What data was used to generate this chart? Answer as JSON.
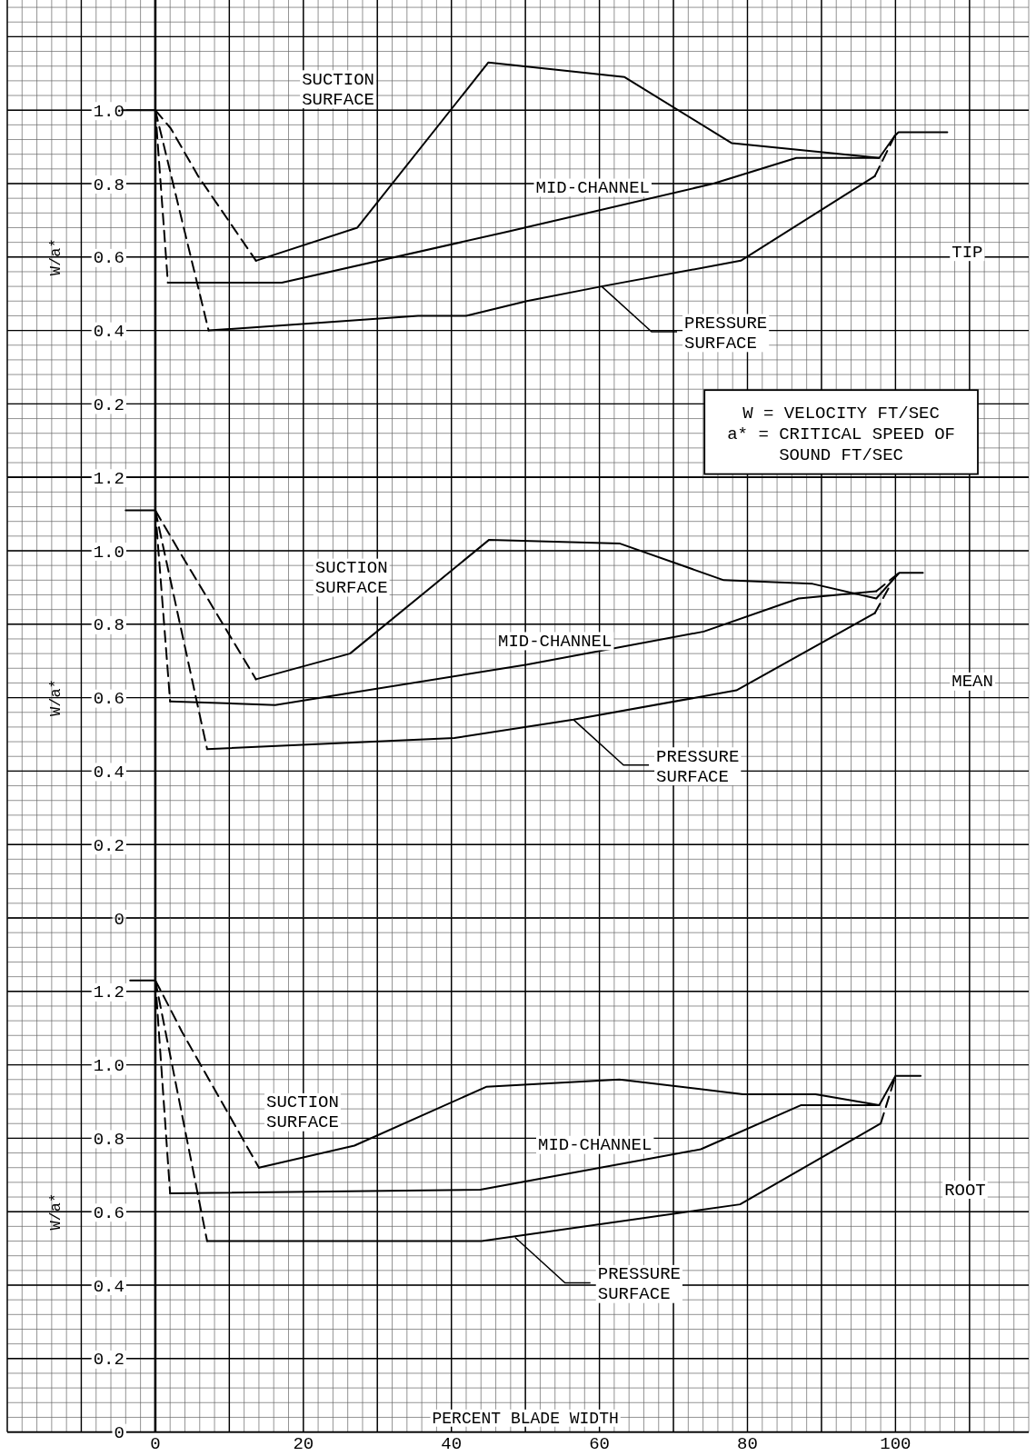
{
  "chart_data": [
    {
      "type": "line",
      "ylabel": "W/a*",
      "xlim": [
        -20,
        118
      ],
      "ylim": [
        0,
        1.3
      ],
      "xticks": [
        {
          "value": -20,
          "label": null
        },
        {
          "value": -10,
          "label": null
        },
        {
          "value": 0,
          "label": null
        },
        {
          "value": 10,
          "label": null
        },
        {
          "value": 20,
          "label": null
        },
        {
          "value": 30,
          "label": null
        },
        {
          "value": 40,
          "label": null
        },
        {
          "value": 50,
          "label": null
        },
        {
          "value": 60,
          "label": null
        },
        {
          "value": 70,
          "label": null
        },
        {
          "value": 80,
          "label": null
        },
        {
          "value": 90,
          "label": null
        },
        {
          "value": 100,
          "label": null
        },
        {
          "value": 110,
          "label": null
        }
      ],
      "yticks": [
        {
          "value": 0,
          "label": null
        },
        {
          "value": 0.2,
          "label": "0.2"
        },
        {
          "value": 0.4,
          "label": "0.4"
        },
        {
          "value": 0.6,
          "label": "0.6"
        },
        {
          "value": 0.8,
          "label": "0.8"
        },
        {
          "value": 1,
          "label": "1.0"
        },
        {
          "value": 1.2,
          "label": null
        }
      ],
      "grid": true,
      "tick_labels": "y",
      "series": [
        {
          "color": "#000000",
          "x": [
            -4.5,
            0
          ],
          "values": [
            1.0,
            1.0
          ]
        },
        {
          "color": "#000000",
          "line_style": "dashed",
          "x": [
            0,
            2.1,
            5.8,
            13.6
          ],
          "values": [
            1.0,
            0.95,
            0.82,
            0.59
          ]
        },
        {
          "color": "#000000",
          "x": [
            13.6,
            27.3,
            45,
            63.4,
            77.9,
            97.8,
            99.9,
            100.4,
            107
          ],
          "values": [
            0.59,
            0.68,
            1.13,
            1.09,
            0.91,
            0.87,
            0.93,
            0.94,
            0.94
          ]
        },
        {
          "color": "#000000",
          "line_style": "dashed",
          "x": [
            0,
            1.7
          ],
          "values": [
            1.0,
            0.53
          ]
        },
        {
          "color": "#000000",
          "x": [
            1.7,
            17.1,
            47.8,
            75.4,
            86.6,
            97.8
          ],
          "values": [
            0.53,
            0.53,
            0.67,
            0.8,
            0.87,
            0.87
          ]
        },
        {
          "color": "#000000",
          "line_style": "dashed",
          "x": [
            0,
            7.2
          ],
          "values": [
            1.0,
            0.4
          ]
        },
        {
          "color": "#000000",
          "x": [
            7.2,
            35.5,
            42,
            50.2,
            60.3,
            79.1,
            97.2
          ],
          "values": [
            0.4,
            0.44,
            0.44,
            0.48,
            0.52,
            0.59,
            0.82
          ]
        },
        {
          "color": "#000000",
          "line_style": "dashed",
          "x": [
            97.2,
            99.9
          ],
          "values": [
            0.82,
            0.93
          ]
        }
      ],
      "annotations": [
        "SUCTION\nSURFACE",
        "MID-CHANNEL",
        {
          "text": "PRESSURE\nSURFACE",
          "x": 60.3,
          "y": 0.52
        },
        "TIP",
        "W = VELOCITY  FT/SEC\na* = CRITICAL SPEED OF\nSOUND  FT/SEC"
      ]
    },
    {
      "type": "line",
      "ylabel": "W/a*",
      "xlim": [
        -20,
        118
      ],
      "ylim": [
        0,
        1.2
      ],
      "xticks": [
        {
          "value": -20,
          "label": null
        },
        {
          "value": -10,
          "label": null
        },
        {
          "value": 0,
          "label": null
        },
        {
          "value": 10,
          "label": null
        },
        {
          "value": 20,
          "label": null
        },
        {
          "value": 30,
          "label": null
        },
        {
          "value": 40,
          "label": null
        },
        {
          "value": 50,
          "label": null
        },
        {
          "value": 60,
          "label": null
        },
        {
          "value": 70,
          "label": null
        },
        {
          "value": 80,
          "label": null
        },
        {
          "value": 90,
          "label": null
        },
        {
          "value": 100,
          "label": null
        },
        {
          "value": 110,
          "label": null
        }
      ],
      "yticks": [
        0,
        0.2,
        0.4,
        0.6,
        0.8,
        {
          "value": 1,
          "label": "1.0"
        },
        1.2
      ],
      "grid": true,
      "tick_labels": "y",
      "series": [
        {
          "color": "#000000",
          "x": [
            -4,
            0
          ],
          "values": [
            1.11,
            1.11
          ]
        },
        {
          "color": "#000000",
          "line_style": "dashed",
          "x": [
            0,
            3.2,
            13.6
          ],
          "values": [
            1.11,
            1.0,
            0.65
          ]
        },
        {
          "color": "#000000",
          "x": [
            13.6,
            26.3,
            45.1,
            62.7,
            76.8,
            88.8,
            97.4,
            100.5,
            103.7
          ],
          "values": [
            0.65,
            0.72,
            1.03,
            1.02,
            0.92,
            0.91,
            0.87,
            0.94,
            0.94
          ]
        },
        {
          "color": "#000000",
          "line_style": "dashed",
          "x": [
            0,
            2
          ],
          "values": [
            1.11,
            0.59
          ]
        },
        {
          "color": "#000000",
          "x": [
            2,
            16.2,
            50.2,
            74.1,
            86.9,
            97.4
          ],
          "values": [
            0.59,
            0.58,
            0.69,
            0.78,
            0.87,
            0.89
          ]
        },
        {
          "color": "#000000",
          "line_style": "dashed",
          "x": [
            97.4,
            100.5
          ],
          "values": [
            0.89,
            0.94
          ]
        },
        {
          "color": "#000000",
          "line_style": "dashed",
          "x": [
            0,
            7
          ],
          "values": [
            1.11,
            0.46
          ]
        },
        {
          "color": "#000000",
          "x": [
            7,
            40.4,
            56.5,
            78.5,
            97.2
          ],
          "values": [
            0.46,
            0.49,
            0.54,
            0.62,
            0.83
          ]
        },
        {
          "color": "#000000",
          "line_style": "dashed",
          "x": [
            97.2,
            99.4
          ],
          "values": [
            0.83,
            0.91
          ]
        }
      ],
      "annotations": [
        "SUCTION\nSURFACE",
        "MID-CHANNEL",
        {
          "text": "PRESSURE\nSURFACE",
          "x": 56.5,
          "y": 0.54
        },
        "MEAN"
      ]
    },
    {
      "type": "line",
      "ylabel": "W/a*",
      "xlabel": "PERCENT BLADE WIDTH",
      "xlim": [
        -20,
        118
      ],
      "ylim": [
        0,
        1.4
      ],
      "xticks": [
        {
          "value": -20,
          "label": null
        },
        {
          "value": -10,
          "label": null
        },
        {
          "value": 0,
          "label": "0"
        },
        {
          "value": 10,
          "label": null
        },
        {
          "value": 20,
          "label": "20"
        },
        {
          "value": 30,
          "label": null
        },
        {
          "value": 40,
          "label": "40"
        },
        {
          "value": 50,
          "label": null
        },
        {
          "value": 60,
          "label": "60"
        },
        {
          "value": 70,
          "label": null
        },
        {
          "value": 80,
          "label": "80"
        },
        {
          "value": 90,
          "label": null
        },
        {
          "value": 100,
          "label": "100"
        },
        {
          "value": 110,
          "label": null
        }
      ],
      "yticks": [
        0,
        0.2,
        0.4,
        0.6,
        0.8,
        {
          "value": 1,
          "label": "1.0"
        },
        1.2
      ],
      "grid": true,
      "series": [
        {
          "color": "#000000",
          "x": [
            -3.4,
            0
          ],
          "values": [
            1.23,
            1.23
          ]
        },
        {
          "color": "#000000",
          "line_style": "dashed",
          "x": [
            0,
            1.3,
            3.6,
            14
          ],
          "values": [
            1.23,
            1.18,
            1.09,
            0.72
          ]
        },
        {
          "color": "#000000",
          "x": [
            14,
            26.9,
            44.7,
            62.7,
            79.4,
            89.2,
            97.8,
            100,
            103.4
          ],
          "values": [
            0.72,
            0.78,
            0.94,
            0.96,
            0.92,
            0.92,
            0.89,
            0.97,
            0.97
          ]
        },
        {
          "color": "#000000",
          "line_style": "dashed",
          "x": [
            0,
            2
          ],
          "values": [
            1.23,
            0.65
          ]
        },
        {
          "color": "#000000",
          "x": [
            2,
            43.9,
            73.7,
            87.2,
            97.8
          ],
          "values": [
            0.65,
            0.66,
            0.77,
            0.89,
            0.89
          ]
        },
        {
          "color": "#000000",
          "line_style": "dashed",
          "x": [
            0,
            7
          ],
          "values": [
            1.23,
            0.52
          ]
        },
        {
          "color": "#000000",
          "x": [
            7,
            44.1,
            79,
            98
          ],
          "values": [
            0.52,
            0.52,
            0.62,
            0.84
          ]
        },
        {
          "color": "#000000",
          "line_style": "dashed",
          "x": [
            98,
            100
          ],
          "values": [
            0.84,
            0.97
          ]
        }
      ],
      "annotations": [
        "SUCTION\nSURFACE",
        "MID-CHANNEL",
        {
          "text": "PRESSURE\nSURFACE",
          "x": 48.6,
          "y": 0.53
        },
        "ROOT"
      ]
    }
  ]
}
